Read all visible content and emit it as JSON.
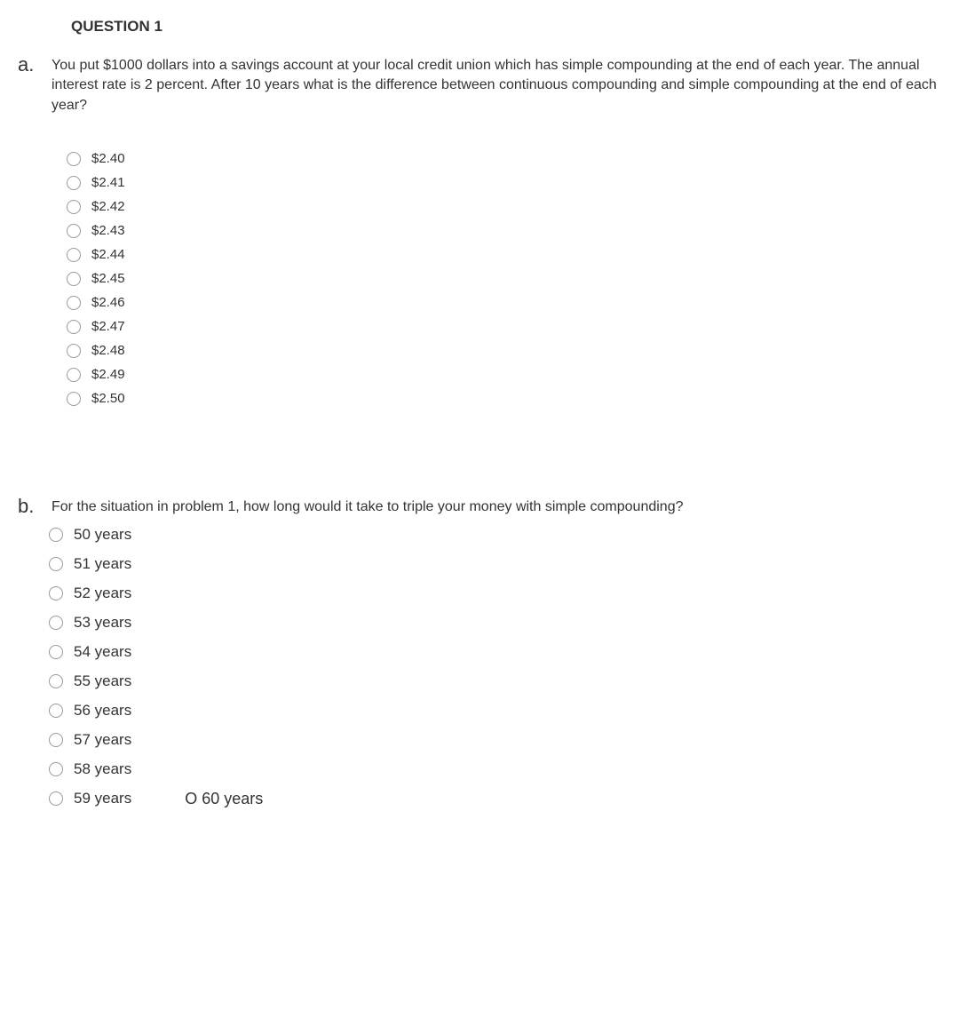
{
  "header": {
    "title": "QUESTION 1"
  },
  "partA": {
    "label": "a.",
    "text": "You put $1000 dollars into a savings account at your local credit union which has simple compounding at the end of each year. The annual interest rate is 2 percent. After 10 years what is the difference between continuous compounding and simple compounding at the end of each year?",
    "options": [
      "$2.40",
      "$2.41",
      "$2.42",
      "$2.43",
      "$2.44",
      "$2.45",
      "$2.46",
      "$2.47",
      "$2.48",
      "$2.49",
      "$2.50"
    ]
  },
  "partB": {
    "label": "b.",
    "text": "For the situation in problem 1, how long would it take to triple your money with simple compounding?",
    "options": [
      "50 years",
      "51 years",
      "52 years",
      "53 years",
      "54 years",
      "55 years",
      "56 years",
      "57 years",
      "58 years",
      "59 years"
    ],
    "extraOption": "O 60 years"
  },
  "colors": {
    "background": "#ffffff",
    "text": "#333333",
    "radioBorder": "#999999"
  }
}
